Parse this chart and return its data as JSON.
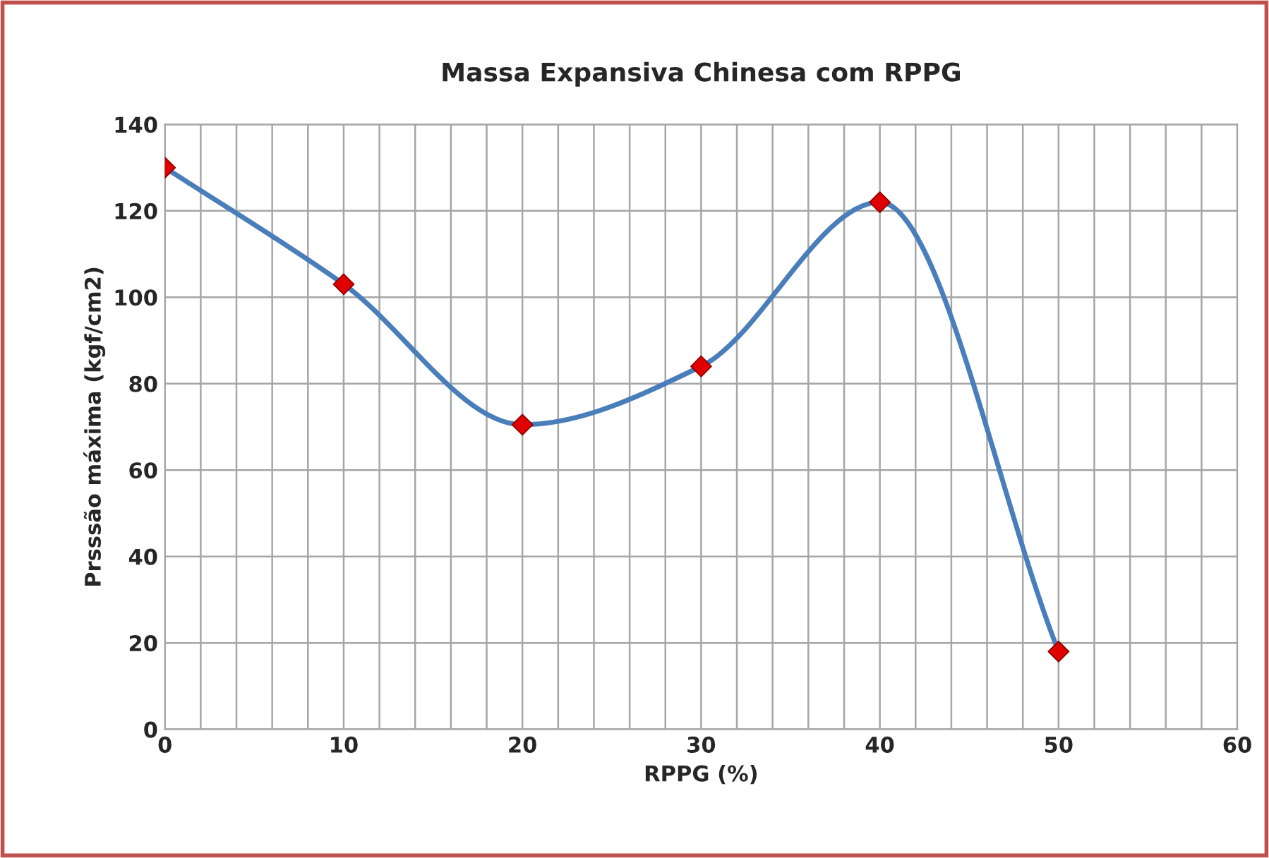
{
  "chart_data": {
    "type": "line",
    "title": "Massa Expansiva Chinesa com RPPG",
    "xlabel": "RPPG (%)",
    "ylabel": "Prsssão máxima (kgf/cm2)",
    "x": [
      0,
      10,
      20,
      30,
      40,
      50
    ],
    "series": [
      {
        "color": "#4a7ebb",
        "marker": "none",
        "values": [
          130,
          103,
          70.5,
          84,
          122,
          18
        ]
      },
      {
        "type": "scatter",
        "color": "#e00000",
        "marker": "diamond",
        "values": [
          130,
          103,
          70.5,
          84,
          122,
          18
        ]
      }
    ],
    "xlim": [
      0,
      60
    ],
    "xticks": [
      0,
      10,
      20,
      30,
      40,
      50,
      60
    ],
    "ylim": [
      0,
      140
    ],
    "yticks": [
      0,
      20,
      40,
      60,
      80,
      100,
      120,
      140
    ],
    "grid": true,
    "legend": false
  }
}
